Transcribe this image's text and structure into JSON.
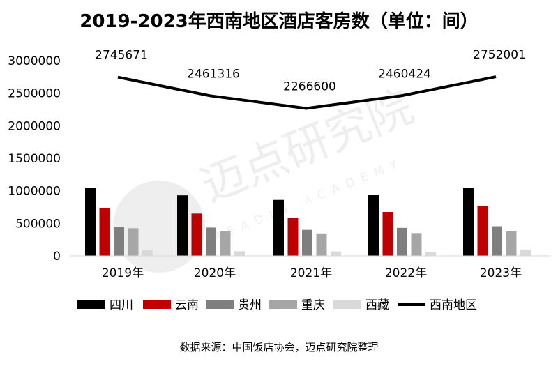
{
  "chart_data": {
    "type": "bar",
    "title": "2019-2023年西南地区酒店客房数（单位：间）",
    "categories": [
      "2019年",
      "2020年",
      "2021年",
      "2022年",
      "2023年"
    ],
    "ylim": [
      0,
      3000000
    ],
    "yticks": [
      "0",
      "500000",
      "1000000",
      "1500000",
      "2000000",
      "2500000",
      "3000000"
    ],
    "ytick_values": [
      0,
      500000,
      1000000,
      1500000,
      2000000,
      2500000,
      3000000
    ],
    "series": [
      {
        "name": "四川",
        "type": "bar",
        "color": "#000000",
        "values": [
          1040000,
          930000,
          860000,
          935000,
          1045000
        ]
      },
      {
        "name": "云南",
        "type": "bar",
        "color": "#c00000",
        "values": [
          735000,
          650000,
          580000,
          675000,
          770000
        ]
      },
      {
        "name": "贵州",
        "type": "bar",
        "color": "#7f7f7f",
        "values": [
          450000,
          435000,
          400000,
          430000,
          455000
        ]
      },
      {
        "name": "重庆",
        "type": "bar",
        "color": "#a6a6a6",
        "values": [
          425000,
          375000,
          345000,
          350000,
          385000
        ]
      },
      {
        "name": "西藏",
        "type": "bar",
        "color": "#d9d9d9",
        "values": [
          85000,
          72000,
          68000,
          62000,
          98000
        ]
      },
      {
        "name": "西南地区",
        "type": "line",
        "color": "#000000",
        "values": [
          2745671,
          2461316,
          2266600,
          2460424,
          2752001
        ],
        "labels": [
          "2745671",
          "2461316",
          "2266600",
          "2460424",
          "2752001"
        ]
      }
    ],
    "legend_position": "bottom",
    "grid": false
  },
  "watermark": {
    "cn": "迈点研究院",
    "en": "MEADIN ACADEMY"
  },
  "source": "数据来源：中国饭店协会，迈点研究院整理"
}
